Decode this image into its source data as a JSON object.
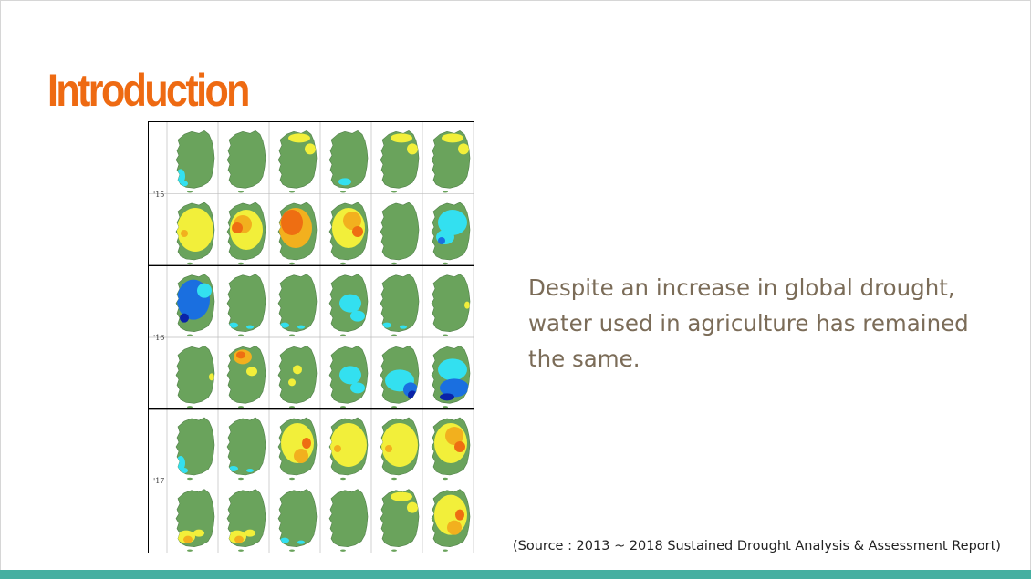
{
  "slide": {
    "title": "Introduction",
    "body": "Despite an increase in global drought, water used in agriculture has remained the same.",
    "source": "(Source : 2013 ~ 2018 Sustained Drought Analysis & Assessment Report)"
  },
  "figure": {
    "years": [
      "'15",
      "'16",
      "'17"
    ],
    "legend_colors": {
      "normal": "#6aa35c",
      "concern": "#f2ef3a",
      "caution": "#f2b01e",
      "alert": "#ee6e12",
      "slightly_wet": "#33e0f0",
      "wet": "#1a6fe0",
      "very_wet": "#0a23a8"
    },
    "panels": [
      [
        "cyan_sw",
        "green",
        "yellow_n",
        "cyan_s",
        "yellow_n",
        "yellow_n"
      ],
      [
        "yellow_heavy",
        "orange_mix",
        "orange_heavy",
        "orange_yellow",
        "green",
        "cyan_heavy"
      ],
      [
        "blue_heavy",
        "cyan_light",
        "cyan_light",
        "cyan_mid",
        "cyan_light",
        "yellow_spot"
      ],
      [
        "yellow_spot",
        "orange_n",
        "yellow_center",
        "cyan_mid",
        "blue_se",
        "blue_south"
      ],
      [
        "cyan_sw",
        "cyan_light",
        "yellow_mix",
        "yellow_heavy",
        "yellow_heavy",
        "orange_yellow"
      ],
      [
        "yellow_sw",
        "yellow_sw",
        "cyan_light",
        "green",
        "yellow_n",
        "yellow_mix"
      ]
    ]
  }
}
